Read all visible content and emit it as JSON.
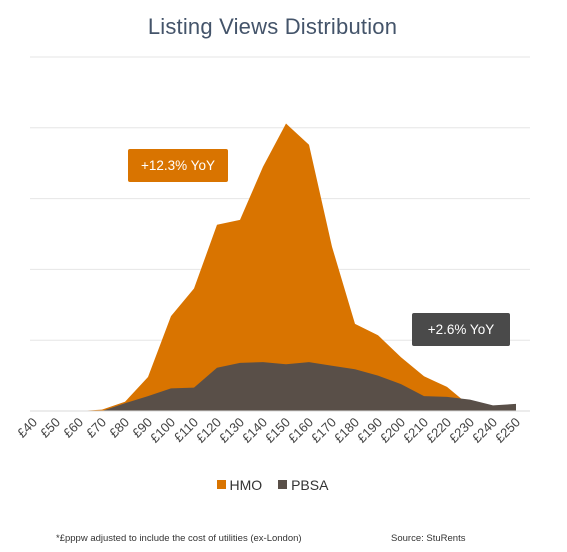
{
  "chart_data": {
    "type": "area",
    "title": "Listing Views Distribution",
    "categories": [
      "£40",
      "£50",
      "£60",
      "£70",
      "£80",
      "£90",
      "£100",
      "£110",
      "£120",
      "£130",
      "£140",
      "£150",
      "£160",
      "£170",
      "£180",
      "£190",
      "£200",
      "£210",
      "£220",
      "£230",
      "£240",
      "£250"
    ],
    "series": [
      {
        "name": "HMO",
        "color": "#d97400",
        "values": [
          0,
          0,
          0,
          0.2,
          1.3,
          4.8,
          13.4,
          17.3,
          26.3,
          27.0,
          34.5,
          40.6,
          37.6,
          23.2,
          12.3,
          10.7,
          7.6,
          4.9,
          3.4,
          0.7,
          0.6,
          0.9
        ]
      },
      {
        "name": "PBSA",
        "color": "#594f48",
        "values": [
          0,
          0,
          0,
          0,
          1.1,
          2.1,
          3.2,
          3.3,
          6.1,
          6.8,
          6.9,
          6.6,
          6.9,
          6.4,
          5.9,
          5.0,
          3.8,
          2.1,
          2.0,
          1.6,
          0.8,
          1.0
        ]
      }
    ],
    "ylim": [
      0,
      50
    ],
    "grid": true,
    "legend_position": "bottom"
  },
  "annotations": {
    "hmo_callout": "+12.3% YoY",
    "hmo_callout_color": "#d97400",
    "pbsa_callout": "+2.6% YoY",
    "pbsa_callout_color": "#4a4a4a"
  },
  "legend": {
    "hmo": "HMO",
    "pbsa": "PBSA"
  },
  "footer": {
    "note": "*£pppw adjusted to include the cost of utilities (ex-London)",
    "source": "Source: StuRents"
  }
}
